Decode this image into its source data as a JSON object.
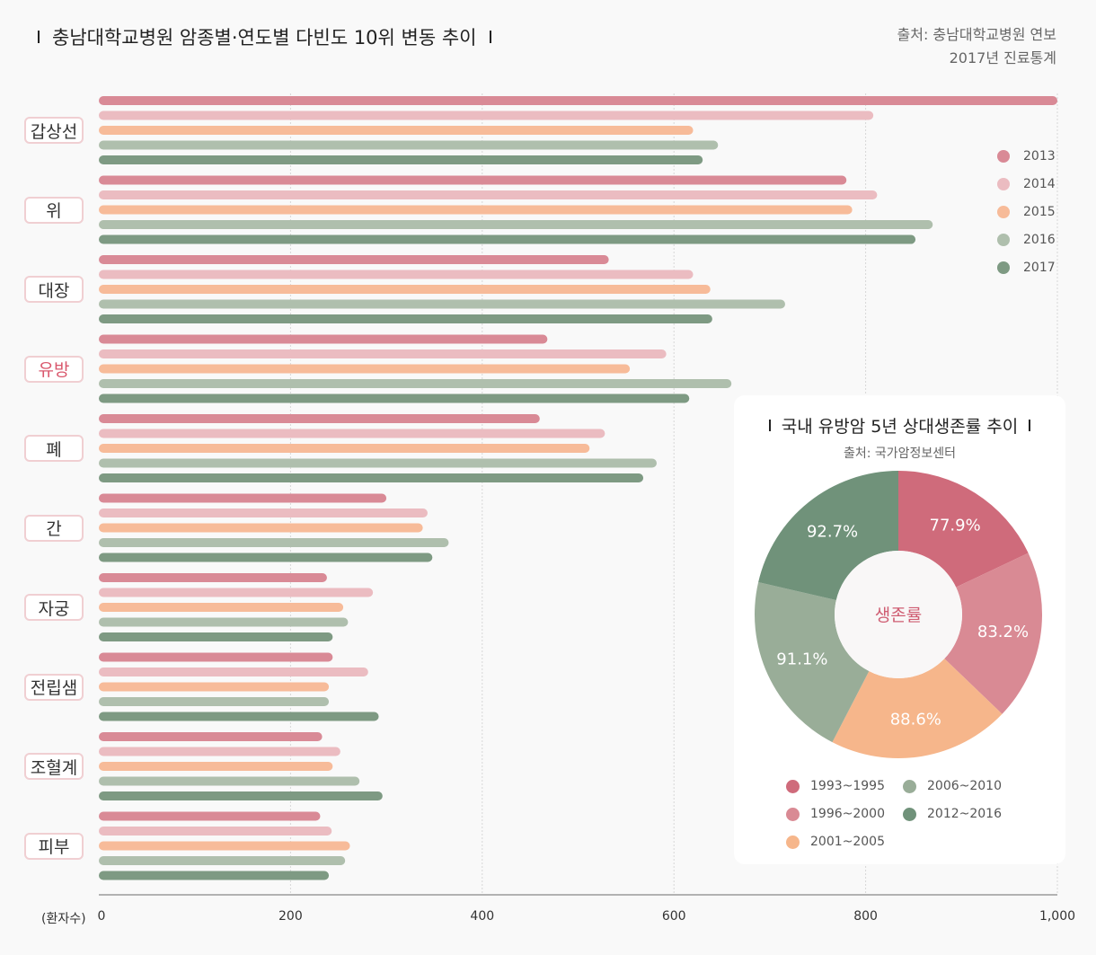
{
  "header": {
    "title": "충남대학교병원 암종별·연도별 다빈도 10위 변동 추이",
    "source_line1": "출처: 충남대학교병원 연보",
    "source_line2": "2017년 진료통계"
  },
  "chart_data": [
    {
      "type": "bar",
      "orientation": "horizontal",
      "title": "충남대학교병원 암종별·연도별 다빈도 10위 변동 추이",
      "xlabel": "(환자수)",
      "xlim": [
        0,
        1000
      ],
      "xticks": [
        "0",
        "200",
        "400",
        "600",
        "800",
        "1,000"
      ],
      "xtick_values": [
        0,
        200,
        400,
        600,
        800,
        1000
      ],
      "grid": "vertical dotted",
      "legend_position": "right",
      "categories": [
        "갑상선",
        "위",
        "대장",
        "유방",
        "폐",
        "간",
        "자궁",
        "전립샘",
        "조혈계",
        "피부"
      ],
      "highlight_category": "유방",
      "series": [
        {
          "name": "2013",
          "color": "#d98a96",
          "values": [
            1000,
            780,
            532,
            468,
            460,
            300,
            238,
            244,
            233,
            231
          ]
        },
        {
          "name": "2014",
          "color": "#ebbcc1",
          "values": [
            808,
            812,
            620,
            592,
            528,
            343,
            286,
            281,
            252,
            243
          ]
        },
        {
          "name": "2015",
          "color": "#f7bb99",
          "values": [
            620,
            786,
            638,
            554,
            512,
            338,
            255,
            240,
            244,
            262
          ]
        },
        {
          "name": "2016",
          "color": "#afbfad",
          "values": [
            646,
            870,
            716,
            660,
            582,
            365,
            260,
            240,
            272,
            257
          ]
        },
        {
          "name": "2017",
          "color": "#7e9a83",
          "values": [
            630,
            852,
            640,
            616,
            568,
            348,
            244,
            292,
            296,
            240
          ]
        }
      ]
    },
    {
      "type": "pie",
      "style": "donut",
      "title": "국내 유방암 5년 상대생존률 추이",
      "source": "출처: 국가암정보센터",
      "center_label": "생존률",
      "slices": [
        {
          "label": "1993~1995",
          "value": 77.9,
          "text": "77.9%",
          "color": "#cf6b7b"
        },
        {
          "label": "1996~2000",
          "value": 83.2,
          "text": "83.2%",
          "color": "#d98a94"
        },
        {
          "label": "2001~2005",
          "value": 88.6,
          "text": "88.6%",
          "color": "#f6b68b"
        },
        {
          "label": "2006~2010",
          "value": 91.1,
          "text": "91.1%",
          "color": "#99ad98"
        },
        {
          "label": "2012~2016",
          "value": 92.7,
          "text": "92.7%",
          "color": "#70927a"
        }
      ]
    }
  ]
}
